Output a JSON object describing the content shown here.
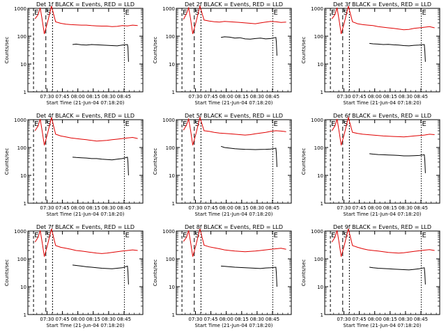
{
  "chart_data": [
    {
      "type": "line",
      "title": "Det 1f BLACK = Events, RED = LLD",
      "xlabel": "Start Time (21-Jun-04 07:18:20)",
      "ylabel": "Counts/sec",
      "xticks": [
        "07:30",
        "07:45",
        "08:00",
        "08:15",
        "08:30",
        "08:45"
      ],
      "yticks": [
        "1",
        "10",
        "100",
        "1000"
      ],
      "ylim": [
        1,
        1000
      ],
      "yscale": "log",
      "markers": [
        "E",
        "S",
        "E"
      ],
      "series": [
        {
          "name": "BLACK = Events",
          "color": "#000000",
          "x": [
            36.5,
            40,
            45,
            50,
            55,
            60,
            65,
            70,
            75,
            80,
            85,
            90,
            90.5,
            91
          ],
          "y": [
            50,
            52,
            49,
            48,
            50,
            49,
            48,
            47,
            46,
            45,
            48,
            50,
            40,
            12
          ]
        },
        {
          "name": "RED = LLD",
          "color": "#e00000",
          "x": [
            0,
            3,
            5,
            7,
            9,
            12,
            16,
            20,
            25,
            30,
            35,
            40,
            45,
            50,
            55,
            60,
            65,
            70,
            75,
            80,
            85,
            90,
            95,
            100
          ],
          "y": [
            420,
            600,
            1050,
            380,
            120,
            300,
            1200,
            330,
            290,
            270,
            260,
            255,
            250,
            250,
            240,
            235,
            230,
            230,
            220,
            225,
            240,
            235,
            250,
            240
          ]
        }
      ]
    },
    {
      "type": "line",
      "title": "Det 2f BLACK = Events, RED = LLD",
      "xlabel": "Start Time (21-Jun-04 07:18:20)",
      "ylabel": "Counts/sec",
      "xticks": [
        "07:30",
        "07:45",
        "08:00",
        "08:15",
        "08:30",
        "08:45"
      ],
      "yticks": [
        "1",
        "10",
        "100",
        "1000"
      ],
      "ylim": [
        1,
        1000
      ],
      "yscale": "log",
      "markers": [
        "E",
        "S",
        "E"
      ],
      "series": [
        {
          "name": "BLACK = Events",
          "color": "#000000",
          "x": [
            36.5,
            40,
            45,
            50,
            55,
            60,
            65,
            70,
            75,
            80,
            85,
            90,
            90.5,
            91
          ],
          "y": [
            90,
            95,
            92,
            85,
            88,
            80,
            78,
            82,
            85,
            80,
            82,
            90,
            60,
            20
          ]
        },
        {
          "name": "RED = LLD",
          "color": "#e00000",
          "x": [
            0,
            3,
            5,
            7,
            9,
            12,
            16,
            20,
            25,
            30,
            35,
            40,
            45,
            50,
            55,
            60,
            65,
            70,
            75,
            80,
            85,
            90,
            95,
            100
          ],
          "y": [
            400,
            650,
            1050,
            400,
            120,
            300,
            1200,
            380,
            350,
            330,
            320,
            340,
            330,
            320,
            310,
            300,
            290,
            280,
            300,
            320,
            340,
            330,
            310,
            320
          ]
        }
      ]
    },
    {
      "type": "line",
      "title": "Det 3f BLACK = Events, RED = LLD",
      "xlabel": "Start Time (21-Jun-04 07:18:20)",
      "ylabel": "Counts/sec",
      "xticks": [
        "07:30",
        "07:45",
        "08:00",
        "08:15",
        "08:30",
        "08:45"
      ],
      "yticks": [
        "1",
        "10",
        "100",
        "1000"
      ],
      "ylim": [
        1,
        1000
      ],
      "yscale": "log",
      "markers": [
        "E",
        "S",
        "E"
      ],
      "series": [
        {
          "name": "BLACK = Events",
          "color": "#000000",
          "x": [
            36.5,
            40,
            45,
            50,
            55,
            60,
            65,
            70,
            75,
            80,
            85,
            90,
            90.5,
            91
          ],
          "y": [
            55,
            53,
            52,
            50,
            51,
            49,
            48,
            46,
            45,
            47,
            48,
            50,
            30,
            12
          ]
        },
        {
          "name": "RED = LLD",
          "color": "#e00000",
          "x": [
            0,
            3,
            5,
            7,
            9,
            12,
            16,
            20,
            25,
            30,
            35,
            40,
            45,
            50,
            55,
            60,
            65,
            70,
            75,
            80,
            85,
            90,
            95,
            100
          ],
          "y": [
            420,
            600,
            1050,
            380,
            120,
            300,
            1200,
            330,
            280,
            260,
            250,
            240,
            220,
            210,
            200,
            190,
            180,
            170,
            175,
            190,
            200,
            210,
            220,
            200
          ]
        }
      ]
    },
    {
      "type": "line",
      "title": "Det 4f BLACK = Events, RED = LLD",
      "xlabel": "Start Time (21-Jun-04 07:18:20)",
      "ylabel": "Counts/sec",
      "xticks": [
        "07:30",
        "07:45",
        "08:00",
        "08:15",
        "08:30",
        "08:45"
      ],
      "yticks": [
        "1",
        "10",
        "100",
        "1000"
      ],
      "ylim": [
        1,
        1000
      ],
      "yscale": "log",
      "markers": [
        "E",
        "S",
        "E"
      ],
      "series": [
        {
          "name": "BLACK = Events",
          "color": "#000000",
          "x": [
            36.5,
            40,
            45,
            50,
            55,
            60,
            65,
            70,
            75,
            80,
            85,
            90,
            90.5,
            91
          ],
          "y": [
            45,
            44,
            43,
            42,
            40,
            40,
            38,
            37,
            36,
            38,
            40,
            45,
            30,
            10
          ]
        },
        {
          "name": "RED = LLD",
          "color": "#e00000",
          "x": [
            0,
            3,
            5,
            7,
            9,
            12,
            16,
            20,
            25,
            30,
            35,
            40,
            45,
            50,
            55,
            60,
            65,
            70,
            75,
            80,
            85,
            90,
            95,
            100
          ],
          "y": [
            400,
            600,
            1050,
            380,
            120,
            300,
            1200,
            300,
            260,
            240,
            220,
            210,
            200,
            190,
            180,
            170,
            175,
            180,
            190,
            200,
            210,
            220,
            230,
            210
          ]
        }
      ]
    },
    {
      "type": "line",
      "title": "Det 5f BLACK = Events, RED = LLD",
      "xlabel": "Start Time (21-Jun-04 07:18:20)",
      "ylabel": "Counts/sec",
      "xticks": [
        "07:30",
        "07:45",
        "08:00",
        "08:15",
        "08:30",
        "08:45"
      ],
      "yticks": [
        "1",
        "10",
        "100",
        "1000"
      ],
      "ylim": [
        1,
        1000
      ],
      "yscale": "log",
      "markers": [
        "E",
        "S",
        "E"
      ],
      "series": [
        {
          "name": "BLACK = Events",
          "color": "#000000",
          "x": [
            36.5,
            40,
            45,
            50,
            55,
            60,
            65,
            70,
            75,
            80,
            85,
            90,
            90.5,
            91
          ],
          "y": [
            110,
            100,
            95,
            90,
            88,
            86,
            85,
            84,
            85,
            86,
            88,
            95,
            60,
            20
          ]
        },
        {
          "name": "RED = LLD",
          "color": "#e00000",
          "x": [
            0,
            3,
            5,
            7,
            9,
            12,
            16,
            20,
            25,
            30,
            35,
            40,
            45,
            50,
            55,
            60,
            65,
            70,
            75,
            80,
            85,
            90,
            95,
            100
          ],
          "y": [
            420,
            650,
            1050,
            400,
            120,
            300,
            1200,
            400,
            380,
            350,
            330,
            320,
            310,
            300,
            290,
            280,
            290,
            310,
            330,
            350,
            380,
            400,
            390,
            370
          ]
        }
      ]
    },
    {
      "type": "line",
      "title": "Det 6f BLACK = Events, RED = LLD",
      "xlabel": "Start Time (21-Jun-04 07:18:20)",
      "ylabel": "Counts/sec",
      "xticks": [
        "07:30",
        "07:45",
        "08:00",
        "08:15",
        "08:30",
        "08:45"
      ],
      "yticks": [
        "1",
        "10",
        "100",
        "1000"
      ],
      "ylim": [
        1,
        1000
      ],
      "yscale": "log",
      "markers": [
        "E",
        "S",
        "E"
      ],
      "series": [
        {
          "name": "BLACK = Events",
          "color": "#000000",
          "x": [
            36.5,
            40,
            45,
            50,
            55,
            60,
            65,
            70,
            75,
            80,
            85,
            90,
            90.5,
            91
          ],
          "y": [
            60,
            58,
            56,
            55,
            54,
            53,
            52,
            50,
            50,
            51,
            52,
            55,
            35,
            12
          ]
        },
        {
          "name": "RED = LLD",
          "color": "#e00000",
          "x": [
            0,
            3,
            5,
            7,
            9,
            12,
            16,
            20,
            25,
            30,
            35,
            40,
            45,
            50,
            55,
            60,
            65,
            70,
            75,
            80,
            85,
            90,
            95,
            100
          ],
          "y": [
            400,
            600,
            1050,
            380,
            120,
            300,
            1200,
            350,
            320,
            300,
            290,
            280,
            270,
            260,
            255,
            250,
            245,
            240,
            250,
            260,
            270,
            280,
            300,
            290
          ]
        }
      ]
    },
    {
      "type": "line",
      "title": "Det 7f BLACK = Events, RED = LLD",
      "xlabel": "Start Time (21-Jun-04 07:18:20)",
      "ylabel": "Counts/sec",
      "xticks": [
        "07:30",
        "07:45",
        "08:00",
        "08:15",
        "08:30",
        "08:45"
      ],
      "yticks": [
        "1",
        "10",
        "100",
        "1000"
      ],
      "ylim": [
        1,
        1000
      ],
      "yscale": "log",
      "markers": [
        "E",
        "S",
        "E"
      ],
      "series": [
        {
          "name": "BLACK = Events",
          "color": "#000000",
          "x": [
            36.5,
            40,
            45,
            50,
            55,
            60,
            65,
            70,
            75,
            80,
            85,
            90,
            90.5,
            91
          ],
          "y": [
            60,
            58,
            55,
            52,
            50,
            48,
            46,
            45,
            44,
            46,
            48,
            55,
            35,
            12
          ]
        },
        {
          "name": "RED = LLD",
          "color": "#e00000",
          "x": [
            0,
            3,
            5,
            7,
            9,
            12,
            16,
            20,
            25,
            30,
            35,
            40,
            45,
            50,
            55,
            60,
            65,
            70,
            75,
            80,
            85,
            90,
            95,
            100
          ],
          "y": [
            400,
            600,
            1050,
            380,
            120,
            300,
            1200,
            300,
            260,
            240,
            220,
            200,
            190,
            180,
            170,
            160,
            155,
            160,
            170,
            180,
            190,
            200,
            210,
            200
          ]
        }
      ]
    },
    {
      "type": "line",
      "title": "Det 8f BLACK = Events, RED = LLD",
      "xlabel": "Start Time (21-Jun-04 07:18:20)",
      "ylabel": "Counts/sec",
      "xticks": [
        "07:30",
        "07:45",
        "08:00",
        "08:15",
        "08:30",
        "08:45"
      ],
      "yticks": [
        "1",
        "10",
        "100",
        "1000"
      ],
      "ylim": [
        1,
        1000
      ],
      "yscale": "log",
      "markers": [
        "E",
        "S",
        "E"
      ],
      "series": [
        {
          "name": "BLACK = Events",
          "color": "#000000",
          "x": [
            36.5,
            40,
            45,
            50,
            55,
            60,
            65,
            70,
            75,
            80,
            85,
            90,
            90.5,
            91
          ],
          "y": [
            55,
            54,
            52,
            50,
            49,
            48,
            47,
            46,
            45,
            47,
            48,
            50,
            30,
            10
          ]
        },
        {
          "name": "RED = LLD",
          "color": "#e00000",
          "x": [
            0,
            3,
            5,
            7,
            9,
            12,
            16,
            20,
            25,
            30,
            35,
            40,
            45,
            50,
            55,
            60,
            65,
            70,
            75,
            80,
            85,
            90,
            95,
            100
          ],
          "y": [
            420,
            600,
            1050,
            380,
            120,
            300,
            1200,
            310,
            270,
            250,
            230,
            210,
            200,
            190,
            185,
            180,
            185,
            190,
            200,
            210,
            220,
            230,
            240,
            220
          ]
        }
      ]
    },
    {
      "type": "line",
      "title": "Det 9f BLACK = Events, RED = LLD",
      "xlabel": "Start Time (21-Jun-04 07:18:20)",
      "ylabel": "Counts/sec",
      "xticks": [
        "07:30",
        "07:45",
        "08:00",
        "08:15",
        "08:30",
        "08:45"
      ],
      "yticks": [
        "1",
        "10",
        "100",
        "1000"
      ],
      "ylim": [
        1,
        1000
      ],
      "yscale": "log",
      "markers": [
        "E",
        "S",
        "E"
      ],
      "series": [
        {
          "name": "BLACK = Events",
          "color": "#000000",
          "x": [
            36.5,
            40,
            45,
            50,
            55,
            60,
            65,
            70,
            75,
            80,
            85,
            90,
            90.5,
            91
          ],
          "y": [
            50,
            48,
            46,
            45,
            44,
            43,
            42,
            41,
            40,
            42,
            44,
            48,
            30,
            12
          ]
        },
        {
          "name": "RED = LLD",
          "color": "#e00000",
          "x": [
            0,
            3,
            5,
            7,
            9,
            12,
            16,
            20,
            25,
            30,
            35,
            40,
            45,
            50,
            55,
            60,
            65,
            70,
            75,
            80,
            85,
            90,
            95,
            100
          ],
          "y": [
            400,
            600,
            1050,
            380,
            120,
            300,
            1200,
            300,
            260,
            230,
            210,
            200,
            190,
            180,
            170,
            165,
            160,
            165,
            175,
            185,
            195,
            205,
            215,
            200
          ]
        }
      ]
    }
  ]
}
